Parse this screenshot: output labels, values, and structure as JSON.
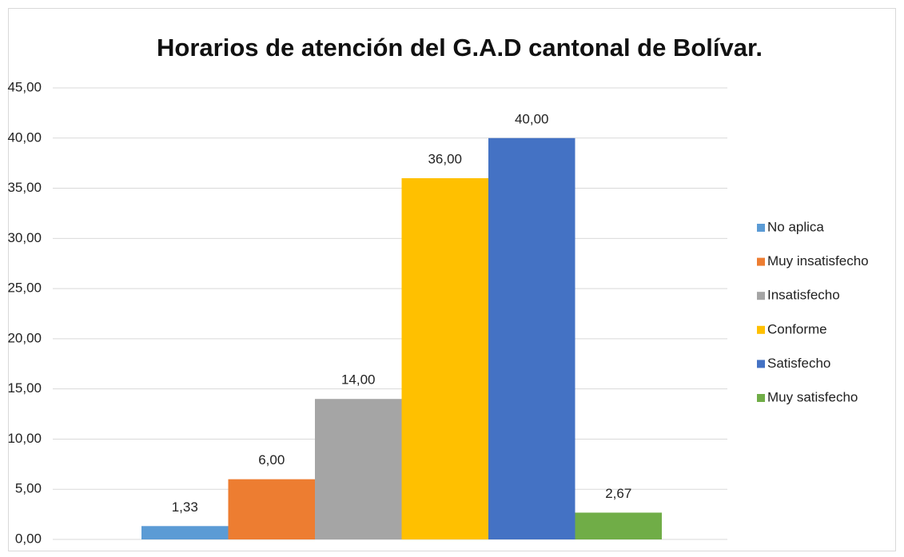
{
  "chart_data": {
    "type": "bar",
    "title": "Horarios de atención del G.A.D cantonal de Bolívar.",
    "series": [
      {
        "name": "No aplica",
        "color": "#5b9bd5",
        "values": [
          1.33
        ],
        "value_labels": [
          "1,33"
        ]
      },
      {
        "name": "Muy insatisfecho",
        "color": "#ed7d31",
        "values": [
          6
        ],
        "value_labels": [
          "6,00"
        ]
      },
      {
        "name": "Insatisfecho",
        "color": "#a5a5a5",
        "values": [
          14
        ],
        "value_labels": [
          "14,00"
        ]
      },
      {
        "name": "Conforme",
        "color": "#ffc000",
        "values": [
          36
        ],
        "value_labels": [
          "36,00"
        ]
      },
      {
        "name": "Satisfecho",
        "color": "#4472c4",
        "values": [
          40
        ],
        "value_labels": [
          "40,00"
        ]
      },
      {
        "name": "Muy satisfecho",
        "color": "#70ad47",
        "values": [
          2.67
        ],
        "value_labels": [
          "2,67"
        ]
      }
    ],
    "ylim": [
      0,
      45
    ],
    "yticks": [
      {
        "value": 0,
        "label": "0,00"
      },
      {
        "value": 5,
        "label": "5,00"
      },
      {
        "value": 10,
        "label": "10,00"
      },
      {
        "value": 15,
        "label": "15,00"
      },
      {
        "value": 20,
        "label": "20,00"
      },
      {
        "value": 25,
        "label": "25,00"
      },
      {
        "value": 30,
        "label": "30,00"
      },
      {
        "value": 35,
        "label": "35,00"
      },
      {
        "value": 40,
        "label": "40,00"
      },
      {
        "value": 45,
        "label": "45,00"
      }
    ],
    "grid": true,
    "legend": "right"
  }
}
